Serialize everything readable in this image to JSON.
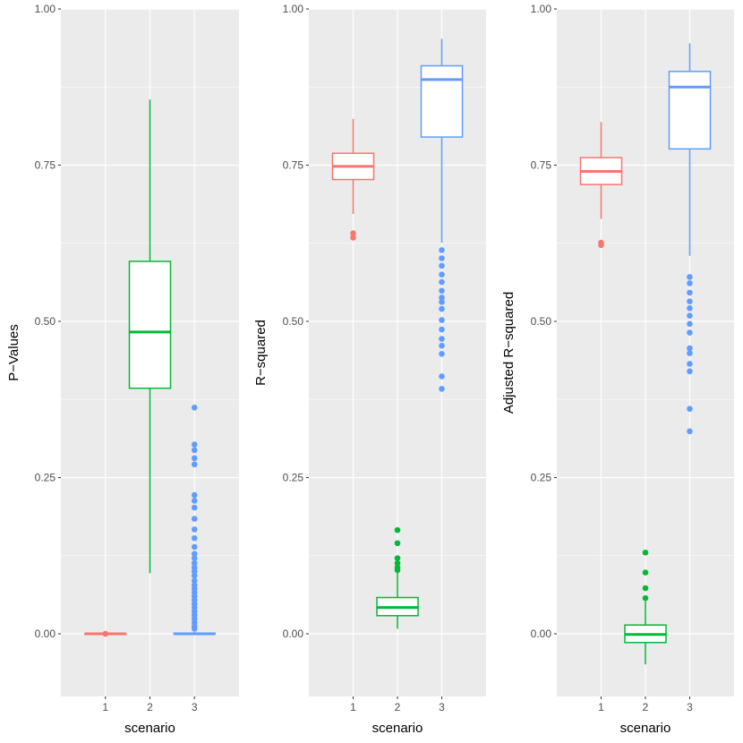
{
  "colors": {
    "panel_bg": "#EBEBEB",
    "grid_major": "#FFFFFF",
    "axis_text": "#4D4D4D",
    "title_text": "#000000",
    "scenario_1": "#F8766D",
    "scenario_2": "#00BA38",
    "scenario_3": "#619CFF"
  },
  "chart_data": [
    {
      "type": "boxplot",
      "ylabel": "P−Values",
      "xlabel": "scenario",
      "categories": [
        "1",
        "2",
        "3"
      ],
      "ylim": [
        -0.095,
        1.0
      ],
      "yticks": [
        0.0,
        0.25,
        0.5,
        0.75,
        1.0
      ],
      "ytick_labels": [
        "0.00",
        "0.25",
        "0.50",
        "0.75",
        "1.00"
      ],
      "grid": true,
      "boxes": [
        {
          "category": "1",
          "lower_whisker": 0.0,
          "q1": 0.0,
          "median": 0.0,
          "q3": 0.0,
          "upper_whisker": 0.0,
          "outliers": [
            0.0
          ]
        },
        {
          "category": "2",
          "lower_whisker": 0.097,
          "q1": 0.393,
          "median": 0.483,
          "q3": 0.596,
          "upper_whisker": 0.855,
          "outliers": []
        },
        {
          "category": "3",
          "lower_whisker": 0.0,
          "q1": 0.0,
          "median": 0.0,
          "q3": 0.001,
          "upper_whisker": 0.003,
          "outliers": [
            0.362,
            0.303,
            0.294,
            0.281,
            0.271,
            0.222,
            0.213,
            0.202,
            0.184,
            0.167,
            0.153,
            0.139,
            0.128,
            0.121,
            0.113,
            0.106,
            0.1,
            0.093,
            0.085,
            0.078,
            0.072,
            0.066,
            0.06,
            0.054,
            0.048,
            0.042,
            0.036,
            0.03,
            0.024,
            0.018,
            0.012,
            0.008
          ]
        }
      ]
    },
    {
      "type": "boxplot",
      "ylabel": "R−squared",
      "xlabel": "scenario",
      "categories": [
        "1",
        "2",
        "3"
      ],
      "ylim": [
        -0.095,
        1.0
      ],
      "yticks": [
        0.0,
        0.25,
        0.5,
        0.75,
        1.0
      ],
      "ytick_labels": [
        "0.00",
        "0.25",
        "0.50",
        "0.75",
        "1.00"
      ],
      "grid": true,
      "boxes": [
        {
          "category": "1",
          "lower_whisker": 0.672,
          "q1": 0.727,
          "median": 0.748,
          "q3": 0.769,
          "upper_whisker": 0.824,
          "outliers": [
            0.641,
            0.634
          ]
        },
        {
          "category": "2",
          "lower_whisker": 0.008,
          "q1": 0.029,
          "median": 0.042,
          "q3": 0.058,
          "upper_whisker": 0.098,
          "outliers": [
            0.166,
            0.145,
            0.121,
            0.113,
            0.106,
            0.102
          ]
        },
        {
          "category": "3",
          "lower_whisker": 0.626,
          "q1": 0.795,
          "median": 0.887,
          "q3": 0.909,
          "upper_whisker": 0.952,
          "outliers": [
            0.614,
            0.601,
            0.589,
            0.575,
            0.563,
            0.549,
            0.538,
            0.531,
            0.52,
            0.502,
            0.487,
            0.472,
            0.461,
            0.448,
            0.412,
            0.392
          ]
        }
      ]
    },
    {
      "type": "boxplot",
      "ylabel": "Adjusted R−squared",
      "xlabel": "scenario",
      "categories": [
        "1",
        "2",
        "3"
      ],
      "ylim": [
        -0.095,
        1.0
      ],
      "yticks": [
        0.0,
        0.25,
        0.5,
        0.75,
        1.0
      ],
      "ytick_labels": [
        "0.00",
        "0.25",
        "0.50",
        "0.75",
        "1.00"
      ],
      "grid": true,
      "boxes": [
        {
          "category": "1",
          "lower_whisker": 0.664,
          "q1": 0.719,
          "median": 0.74,
          "q3": 0.762,
          "upper_whisker": 0.819,
          "outliers": [
            0.626,
            0.622
          ]
        },
        {
          "category": "2",
          "lower_whisker": -0.049,
          "q1": -0.014,
          "median": -0.001,
          "q3": 0.014,
          "upper_whisker": 0.052,
          "outliers": [
            0.13,
            0.098,
            0.073,
            0.057
          ]
        },
        {
          "category": "3",
          "lower_whisker": 0.605,
          "q1": 0.776,
          "median": 0.875,
          "q3": 0.9,
          "upper_whisker": 0.945,
          "outliers": [
            0.571,
            0.561,
            0.546,
            0.532,
            0.521,
            0.509,
            0.496,
            0.482,
            0.457,
            0.449,
            0.432,
            0.42,
            0.36,
            0.324
          ]
        }
      ]
    }
  ]
}
